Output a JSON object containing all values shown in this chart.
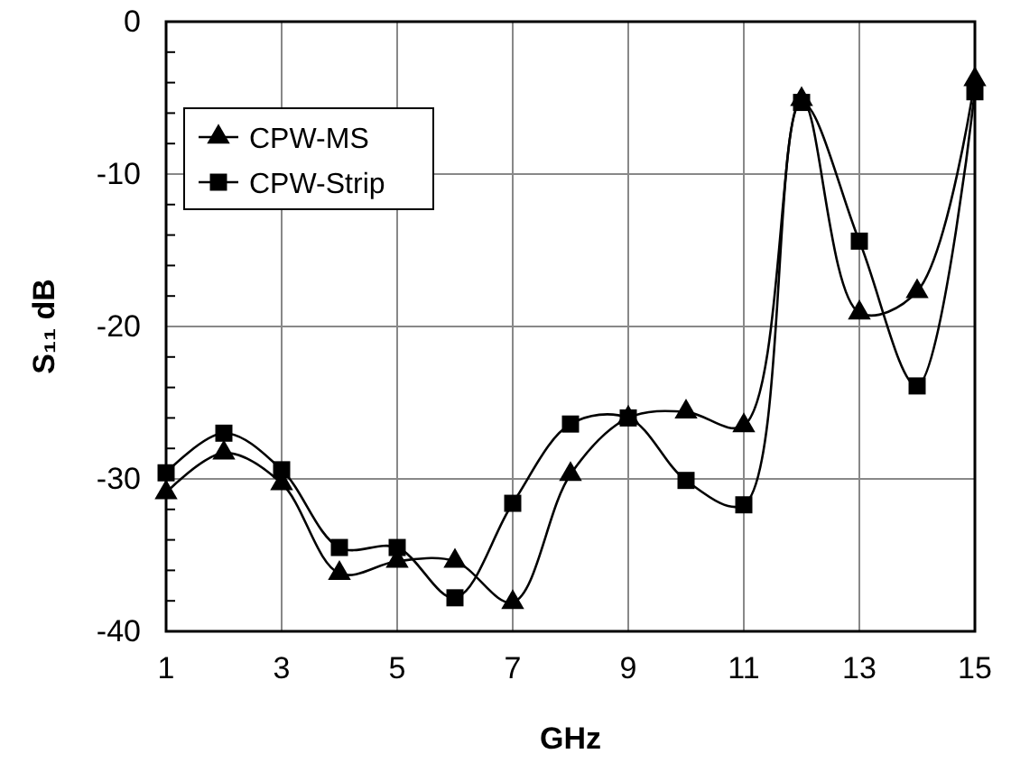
{
  "chart_data": {
    "type": "line",
    "xlabel": "GHz",
    "ylabel": "S₁₁ dB",
    "x": [
      1,
      2,
      3,
      4,
      5,
      6,
      7,
      8,
      9,
      10,
      11,
      12,
      13,
      14,
      15
    ],
    "xlim": [
      1,
      15
    ],
    "xticks": [
      1,
      3,
      5,
      7,
      9,
      11,
      13,
      15
    ],
    "ylim": [
      -40,
      0
    ],
    "yticks": [
      -40,
      -30,
      -20,
      -10,
      0
    ],
    "grid": true,
    "legend": "top left",
    "series": [
      {
        "name": "CPW-MS",
        "color": "#000000",
        "marker": "triangle",
        "values": [
          -30.9,
          -28.3,
          -30.3,
          -36.2,
          -35.4,
          -35.4,
          -38.1,
          -29.7,
          -26,
          -25.6,
          -26.5,
          -5.1,
          -19.1,
          -17.7,
          -3.8
        ]
      },
      {
        "name": "CPW-Strip",
        "color": "#000000",
        "marker": "square",
        "values": [
          -29.6,
          -27,
          -29.4,
          -34.5,
          -34.5,
          -37.8,
          -31.6,
          -26.4,
          -26,
          -30.1,
          -31.7,
          -5.3,
          -14.4,
          -23.9,
          -4.6
        ]
      }
    ]
  }
}
